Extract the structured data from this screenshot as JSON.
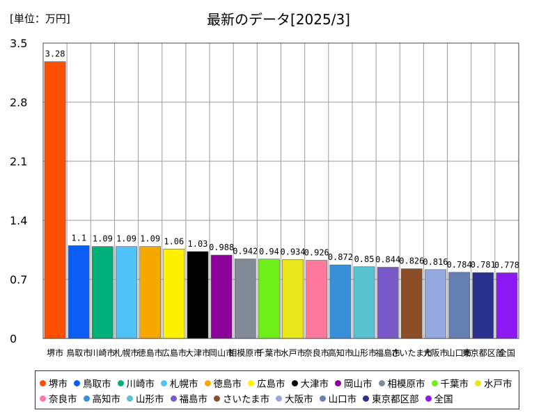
{
  "header": {
    "unit": "[単位：万円]",
    "title": "最新のデータ[2025/3]"
  },
  "chart_data": {
    "type": "bar",
    "title": "最新のデータ[2025/3]",
    "ylabel": "[単位：万円]",
    "ylim": [
      0,
      3.5
    ],
    "yticks": [
      "0",
      "0.7",
      "1.4",
      "2.1",
      "2.8",
      "3.5"
    ],
    "grid": true,
    "legend_position": "bottom",
    "categories": [
      "堺市",
      "鳥取市",
      "川崎市",
      "札幌市",
      "徳島市",
      "広島市",
      "大津市",
      "岡山市",
      "相模原市",
      "千葉市",
      "水戸市",
      "奈良市",
      "高知市",
      "山形市",
      "福島市",
      "さいたま市",
      "大阪市",
      "山口市",
      "東京都区部",
      "全国"
    ],
    "values": [
      3.28,
      1.1,
      1.09,
      1.09,
      1.09,
      1.06,
      1.03,
      0.988,
      0.942,
      0.94,
      0.934,
      0.926,
      0.872,
      0.85,
      0.844,
      0.826,
      0.816,
      0.784,
      0.781,
      0.778
    ],
    "data_labels": [
      "3.28",
      "1.1",
      "1.09",
      "1.09",
      "1.09",
      "1.06",
      "1.03",
      "0.988",
      "0.942",
      "0.94",
      "0.934",
      "0.926",
      "0.872",
      "0.85",
      "0.844",
      "0.826",
      "0.816",
      "0.784",
      "0.781",
      "0.778"
    ],
    "colors": [
      "#ff4f00",
      "#0a5cf2",
      "#00b07a",
      "#4fc3f7",
      "#f5a800",
      "#fff200",
      "#000000",
      "#8b0096",
      "#808b96",
      "#6ff01a",
      "#e8e61a",
      "#ff7a9c",
      "#3a8fd9",
      "#59c2d1",
      "#7a5ac8",
      "#8a4d26",
      "#95a8df",
      "#6680b3",
      "#27328f",
      "#8c18f2"
    ]
  }
}
